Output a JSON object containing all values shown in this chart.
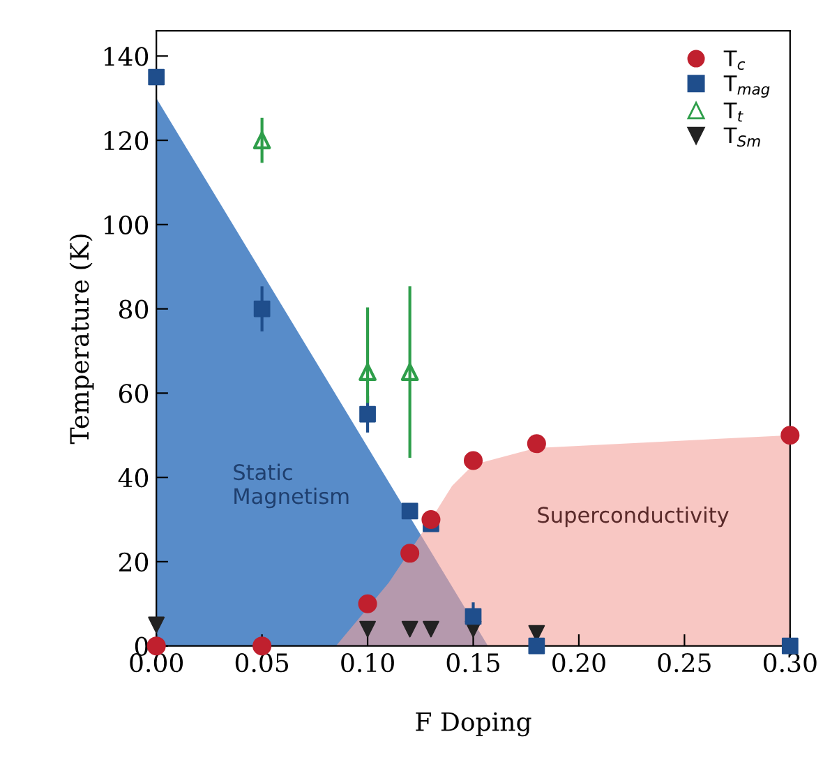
{
  "chart_data": {
    "type": "scatter",
    "xlabel": "F Doping",
    "ylabel": "Temperature (K)",
    "xlim": [
      0,
      0.3
    ],
    "ylim": [
      0,
      146
    ],
    "xticks": [
      {
        "value": 0,
        "label": "0.00"
      },
      {
        "value": 0.05,
        "label": "0.05"
      },
      {
        "value": 0.1,
        "label": "0.10"
      },
      {
        "value": 0.15,
        "label": "0.15"
      },
      {
        "value": 0.2,
        "label": "0.20"
      },
      {
        "value": 0.25,
        "label": "0.25"
      },
      {
        "value": 0.3,
        "label": "0.30"
      }
    ],
    "yticks": [
      0,
      20,
      40,
      60,
      80,
      100,
      120,
      140
    ],
    "grid": false,
    "legend": "top right",
    "series": [
      {
        "type": "area",
        "color": "#4f86c6",
        "x": [
          0,
          0.157
        ],
        "values": [
          130,
          0
        ]
      },
      {
        "type": "area",
        "color": "#f4a19b",
        "x": [
          0.085,
          0.11,
          0.13,
          0.14,
          0.15,
          0.18,
          0.3
        ],
        "values": [
          0,
          15,
          30,
          38,
          43,
          47,
          50
        ]
      },
      {
        "name": "T$_{c}$",
        "color": "#c0202e",
        "marker": "circle",
        "x": [
          0,
          0.05,
          0.1,
          0.12,
          0.13,
          0.15,
          0.18,
          0.3
        ],
        "values": [
          0,
          0,
          10,
          22,
          30,
          44,
          48,
          50
        ]
      },
      {
        "name": "T$_{mag}$",
        "color": "#1f4e8c",
        "marker": "square",
        "x": [
          0,
          0.05,
          0.1,
          0.12,
          0.13,
          0.15,
          0.18,
          0.3
        ],
        "values": [
          135,
          80,
          55,
          32,
          29,
          7,
          0,
          0
        ],
        "errors": [
          null,
          5,
          4,
          null,
          null,
          3,
          null,
          null
        ]
      },
      {
        "name": "T$_{t}$",
        "color": "#2e9e4a",
        "marker": "triangle",
        "x": [
          0.05,
          0.1,
          0.12
        ],
        "values": [
          120,
          65,
          65
        ],
        "errors": [
          5,
          [
            58,
            80
          ],
          [
            45,
            85
          ]
        ]
      },
      {
        "name": "T$_{Sm}$",
        "color": "#222222",
        "marker": "triangle_down",
        "x": [
          0,
          0.1,
          0.12,
          0.13,
          0.15,
          0.18
        ],
        "values": [
          5,
          4,
          4,
          4,
          4,
          3
        ]
      }
    ],
    "annotations": [
      "Static\nMagnetism",
      "Superconductivity"
    ]
  }
}
